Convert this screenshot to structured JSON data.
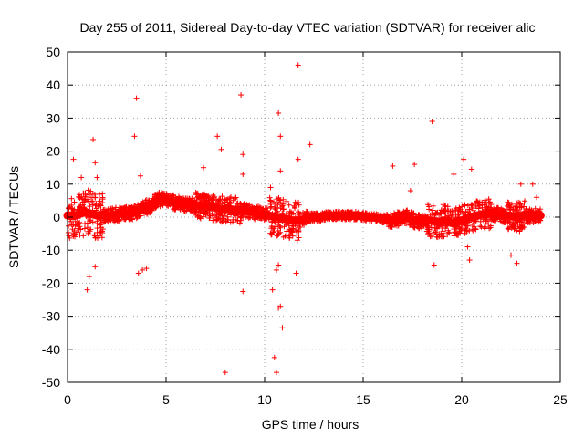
{
  "chart_data": {
    "type": "scatter",
    "title": "Day 255 of 2011, Sidereal Day-to-day VTEC variation (SDTVAR) for receiver alic",
    "xlabel": "GPS time / hours",
    "ylabel": "SDTVAR / TECUs",
    "xlim": [
      0,
      25
    ],
    "ylim": [
      -50,
      50
    ],
    "xticks": [
      "0",
      "5",
      "10",
      "15",
      "20",
      "25"
    ],
    "yticks": [
      "-50",
      "-40",
      "-30",
      "-20",
      "-10",
      "0",
      "10",
      "20",
      "30",
      "40",
      "50"
    ],
    "grid": true,
    "marker": "+",
    "colors": {
      "points": "#ff0000",
      "grid": "#a0a0a0",
      "axis": "#000000"
    },
    "series": [
      {
        "name": "SDTVAR",
        "dense_band": [
          [
            0.0,
            0.5
          ],
          [
            0.3,
            0.3
          ],
          [
            0.6,
            1.0
          ],
          [
            0.9,
            1.5
          ],
          [
            1.2,
            1.0
          ],
          [
            1.5,
            0.5
          ],
          [
            1.8,
            0.5
          ],
          [
            2.2,
            0.5
          ],
          [
            2.6,
            1.0
          ],
          [
            3.0,
            1.0
          ],
          [
            3.4,
            1.5
          ],
          [
            3.8,
            2.5
          ],
          [
            4.2,
            3.5
          ],
          [
            4.6,
            5.5
          ],
          [
            5.0,
            5.0
          ],
          [
            5.4,
            4.5
          ],
          [
            5.8,
            4.0
          ],
          [
            6.2,
            3.5
          ],
          [
            6.6,
            3.5
          ],
          [
            7.0,
            3.0
          ],
          [
            7.4,
            3.0
          ],
          [
            7.8,
            2.5
          ],
          [
            8.2,
            2.5
          ],
          [
            8.6,
            2.0
          ],
          [
            9.0,
            2.0
          ],
          [
            9.4,
            1.5
          ],
          [
            9.8,
            1.0
          ],
          [
            10.2,
            0.5
          ],
          [
            10.6,
            0.0
          ],
          [
            11.0,
            -0.5
          ],
          [
            11.4,
            -1.0
          ],
          [
            11.8,
            -1.0
          ],
          [
            12.4,
            0.0
          ],
          [
            12.8,
            0.0
          ],
          [
            13.2,
            0.5
          ],
          [
            13.6,
            0.5
          ],
          [
            14.0,
            0.5
          ],
          [
            14.4,
            0.5
          ],
          [
            14.8,
            0.5
          ],
          [
            15.2,
            0.0
          ],
          [
            15.6,
            0.0
          ],
          [
            16.0,
            -0.5
          ],
          [
            16.4,
            -1.0
          ],
          [
            16.8,
            -0.5
          ],
          [
            17.2,
            0.0
          ],
          [
            17.6,
            -1.0
          ],
          [
            18.0,
            -1.5
          ],
          [
            18.4,
            -1.0
          ],
          [
            18.8,
            -1.5
          ],
          [
            19.2,
            -1.0
          ],
          [
            19.6,
            -2.0
          ],
          [
            20.0,
            -1.0
          ],
          [
            20.4,
            0.0
          ],
          [
            20.8,
            0.5
          ],
          [
            21.2,
            1.0
          ],
          [
            21.6,
            1.0
          ],
          [
            22.0,
            0.5
          ],
          [
            22.4,
            0.5
          ],
          [
            22.8,
            0.0
          ],
          [
            23.2,
            0.5
          ],
          [
            23.6,
            0.5
          ],
          [
            24.0,
            0.5
          ]
        ],
        "outliers": [
          [
            0.3,
            17.5
          ],
          [
            0.7,
            12.0
          ],
          [
            1.0,
            -22.0
          ],
          [
            1.1,
            -18.0
          ],
          [
            1.3,
            23.5
          ],
          [
            1.4,
            16.5
          ],
          [
            1.4,
            -15.0
          ],
          [
            1.5,
            12.0
          ],
          [
            3.4,
            24.5
          ],
          [
            3.5,
            36.0
          ],
          [
            3.6,
            -17.0
          ],
          [
            3.7,
            12.5
          ],
          [
            3.8,
            -16.0
          ],
          [
            4.0,
            -15.5
          ],
          [
            6.9,
            15.0
          ],
          [
            7.6,
            24.5
          ],
          [
            7.8,
            20.5
          ],
          [
            8.0,
            -47.0
          ],
          [
            8.8,
            37.0
          ],
          [
            8.9,
            -22.5
          ],
          [
            8.9,
            19.0
          ],
          [
            8.9,
            13.0
          ],
          [
            10.3,
            9.0
          ],
          [
            10.4,
            -22.0
          ],
          [
            10.5,
            -42.5
          ],
          [
            10.6,
            -47.0
          ],
          [
            10.6,
            -16.0
          ],
          [
            10.7,
            -27.5
          ],
          [
            10.7,
            31.5
          ],
          [
            10.7,
            -14.5
          ],
          [
            10.8,
            14.0
          ],
          [
            10.8,
            -27.0
          ],
          [
            10.8,
            24.5
          ],
          [
            10.9,
            -33.5
          ],
          [
            11.6,
            -17.0
          ],
          [
            11.7,
            46.0
          ],
          [
            11.7,
            17.5
          ],
          [
            12.3,
            22.0
          ],
          [
            16.5,
            15.5
          ],
          [
            17.4,
            8.0
          ],
          [
            17.6,
            16.0
          ],
          [
            18.5,
            29.0
          ],
          [
            18.6,
            -14.5
          ],
          [
            19.6,
            13.0
          ],
          [
            20.1,
            17.5
          ],
          [
            20.3,
            -9.0
          ],
          [
            20.4,
            -13.0
          ],
          [
            20.5,
            14.5
          ],
          [
            22.5,
            -11.5
          ],
          [
            22.8,
            -14.0
          ],
          [
            23.0,
            10.0
          ],
          [
            23.6,
            10.0
          ],
          [
            23.8,
            6.0
          ]
        ]
      }
    ]
  }
}
